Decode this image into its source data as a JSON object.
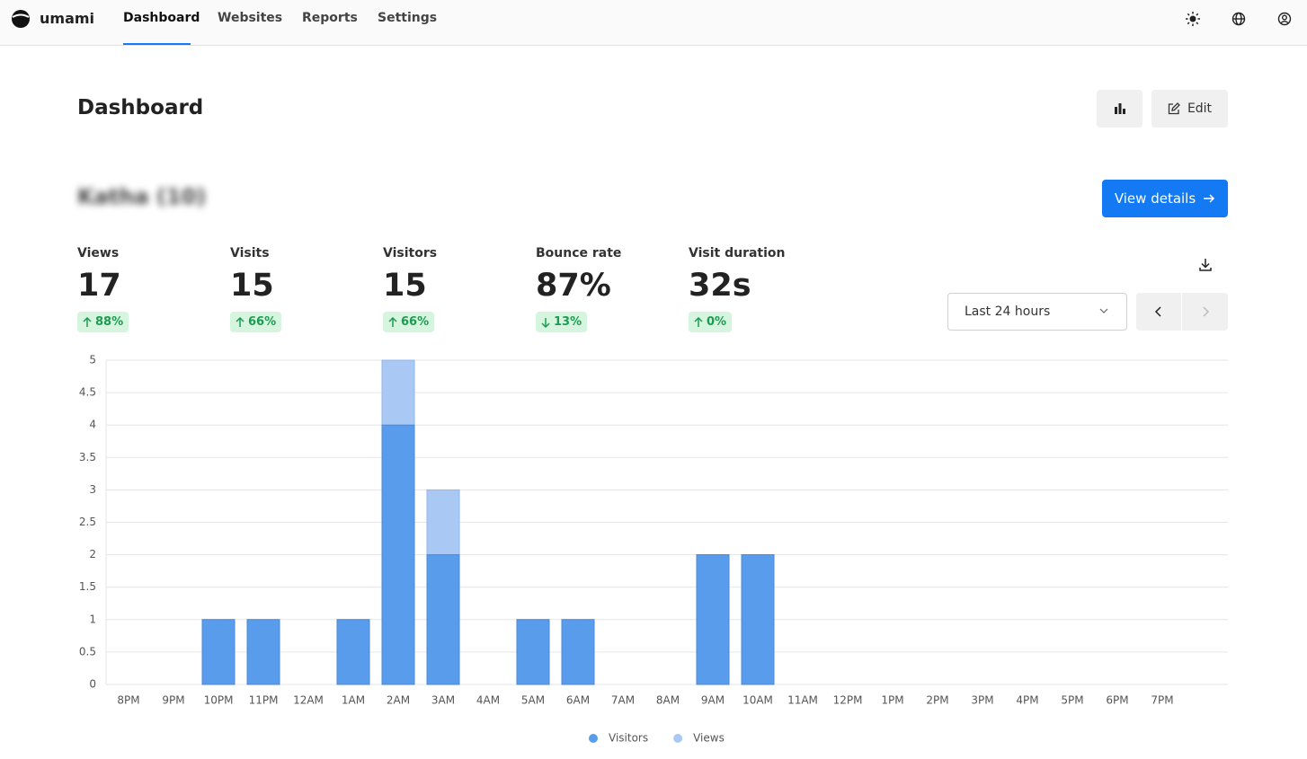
{
  "nav": {
    "brand": "umami",
    "items": [
      "Dashboard",
      "Websites",
      "Reports",
      "Settings"
    ]
  },
  "header": {
    "title": "Dashboard",
    "edit": "Edit"
  },
  "website": {
    "name": "Katha (10)",
    "button": "View details"
  },
  "stats": [
    {
      "label": "Views",
      "value": "17",
      "change": "88%"
    },
    {
      "label": "Visits",
      "value": "15",
      "change": "66%"
    },
    {
      "label": "Visitors",
      "value": "15",
      "change": "66%"
    },
    {
      "label": "Bounce rate",
      "value": "87%",
      "change": "13%"
    },
    {
      "label": "Visit duration",
      "value": "32s",
      "change": "0%"
    }
  ],
  "filter": {
    "range": "Last 24 hours"
  },
  "chart_data": {
    "type": "bar",
    "categories": [
      "8PM",
      "9PM",
      "10PM",
      "11PM",
      "12AM",
      "1AM",
      "2AM",
      "3AM",
      "4AM",
      "5AM",
      "6AM",
      "7AM",
      "8AM",
      "9AM",
      "10AM",
      "11AM",
      "12PM",
      "1PM",
      "2PM",
      "3PM",
      "4PM",
      "5PM",
      "6PM",
      "7PM"
    ],
    "series": [
      {
        "name": "Visitors",
        "color": "#5a9cec",
        "values": [
          0,
          0,
          1,
          1,
          0,
          1,
          4,
          2,
          0,
          1,
          1,
          0,
          0,
          2,
          2,
          0,
          0,
          0,
          0,
          0,
          0,
          0,
          0,
          0
        ]
      },
      {
        "name": "Views",
        "color": "#a9c9f4",
        "values": [
          0,
          0,
          1,
          1,
          0,
          1,
          5,
          3,
          0,
          1,
          1,
          0,
          0,
          2,
          2,
          0,
          0,
          0,
          0,
          0,
          0,
          0,
          0,
          0
        ]
      }
    ],
    "ylim": [
      0,
      5
    ],
    "yticks": [
      0,
      0.5,
      1,
      1.5,
      2,
      2.5,
      3,
      3.5,
      4,
      4.5,
      5
    ],
    "grid": true,
    "legend": "bottom"
  }
}
